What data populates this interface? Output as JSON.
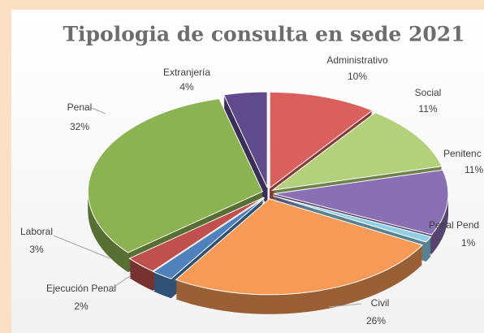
{
  "chart_data": {
    "type": "pie",
    "title": "Tipologia de consulta en sede 2021",
    "categories": [
      "Administrativo",
      "Social",
      "Penitenc",
      "Penal Pend",
      "Civil",
      "Ejecución Penal",
      "Laboral",
      "Penal",
      "Extranjería"
    ],
    "values": [
      10,
      11,
      11,
      1,
      26,
      2,
      3,
      32,
      4
    ],
    "value_labels": [
      "10%",
      "11%",
      "11%",
      "1%",
      "26%",
      "2%",
      "3%",
      "32%",
      "4%"
    ],
    "colors": [
      "#d9605c",
      "#b3d07a",
      "#8a6fb5",
      "#8fd0e6",
      "#f79a55",
      "#4f81bd",
      "#c0504d",
      "#8cb352",
      "#5e4a8c"
    ]
  }
}
